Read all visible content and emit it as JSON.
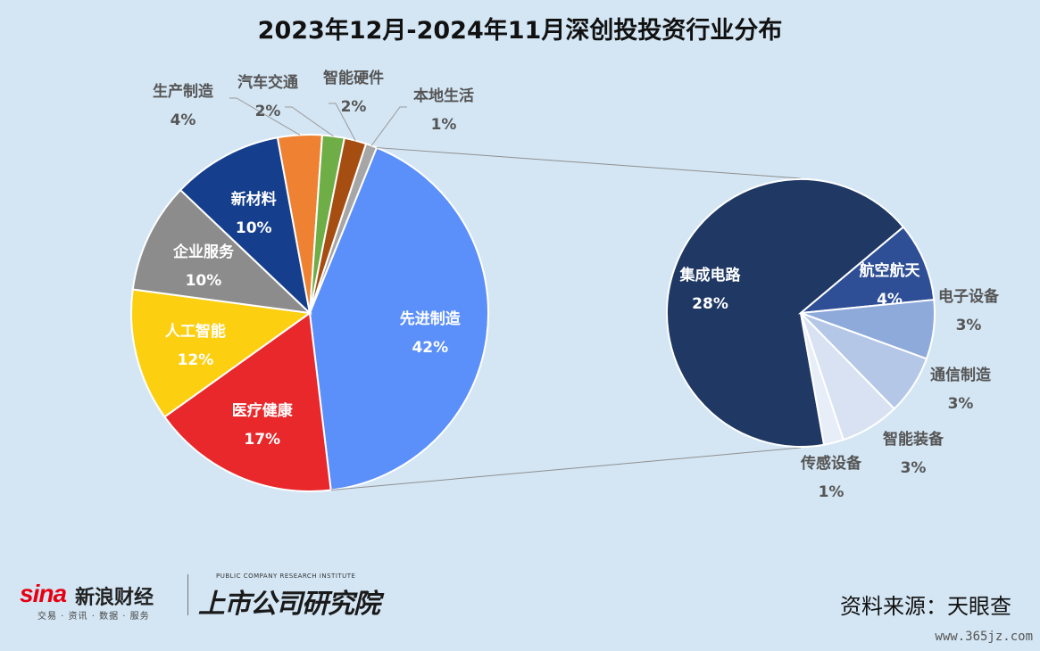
{
  "title": "2023年12月-2024年11月深创投投资行业分布",
  "source": "资料来源：天眼查",
  "logos": {
    "sina": "sina",
    "sina_name": "新浪财经",
    "sina_sub": "交易 · 资讯 · 数据 · 服务",
    "inst_en": "PUBLIC COMPANY RESEARCH INSTITUTE",
    "inst_cn": "上市公司研究院"
  },
  "watermark": "www.365jz.com",
  "chart_data": [
    {
      "type": "pie",
      "slices": [
        {
          "label": "先进制造",
          "value": 42,
          "display": "42%",
          "color": "#5b8ff9"
        },
        {
          "label": "医疗健康",
          "value": 17,
          "display": "17%",
          "color": "#e8282b"
        },
        {
          "label": "人工智能",
          "value": 12,
          "display": "12%",
          "color": "#fccf10"
        },
        {
          "label": "企业服务",
          "value": 10,
          "display": "10%",
          "color": "#8c8c8c"
        },
        {
          "label": "新材料",
          "value": 10,
          "display": "10%",
          "color": "#153e8c"
        },
        {
          "label": "生产制造",
          "value": 4,
          "display": "4%",
          "color": "#ee8232"
        },
        {
          "label": "汽车交通",
          "value": 2,
          "display": "2%",
          "color": "#6fad47"
        },
        {
          "label": "智能硬件",
          "value": 2,
          "display": "2%",
          "color": "#a64d12"
        },
        {
          "label": "本地生活",
          "value": 1,
          "display": "1%",
          "color": "#a6a6a6"
        }
      ]
    },
    {
      "type": "pie",
      "breakdown_of": "先进制造",
      "slices": [
        {
          "label": "集成电路",
          "value": 28,
          "display": "28%",
          "color": "#1f3864"
        },
        {
          "label": "航空航天",
          "value": 4,
          "display": "4%",
          "color": "#2e4e96"
        },
        {
          "label": "电子设备",
          "value": 3,
          "display": "3%",
          "color": "#8eaadb"
        },
        {
          "label": "通信制造",
          "value": 3,
          "display": "3%",
          "color": "#b4c7e7"
        },
        {
          "label": "智能装备",
          "value": 3,
          "display": "3%",
          "color": "#d9e2f3"
        },
        {
          "label": "传感设备",
          "value": 1,
          "display": "1%",
          "color": "#e8eef8"
        }
      ]
    }
  ]
}
